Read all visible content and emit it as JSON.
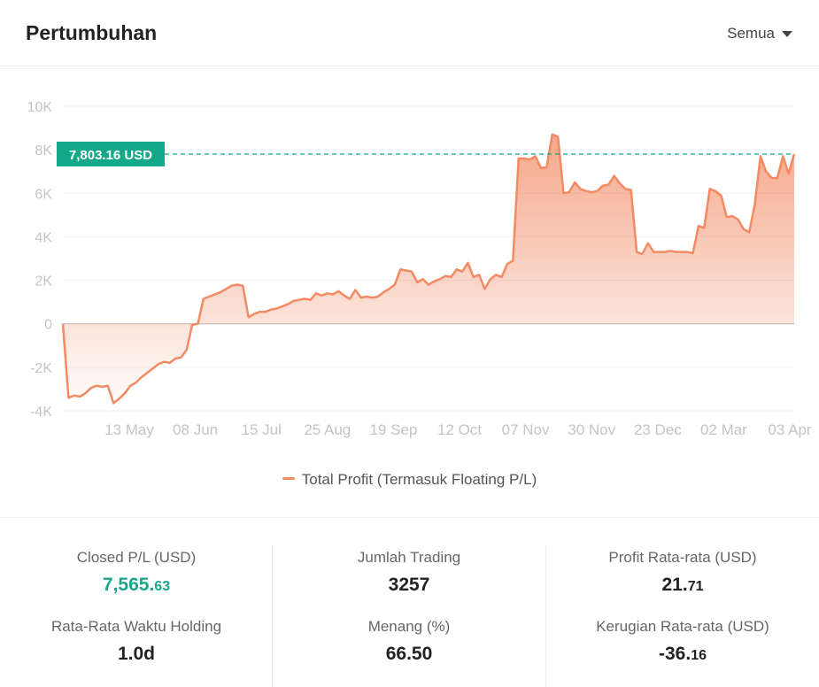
{
  "header": {
    "title": "Pertumbuhan",
    "filter_label": "Semua"
  },
  "chart_data": {
    "type": "area",
    "series": [
      {
        "name": "Total Profit (Termasuk Floating P/L)",
        "color": "#f28a63",
        "values": [
          0,
          -3400,
          -3300,
          -3350,
          -3200,
          -2950,
          -2850,
          -2900,
          -2850,
          -3650,
          -3450,
          -3200,
          -2850,
          -2700,
          -2450,
          -2250,
          -2050,
          -1850,
          -1750,
          -1800,
          -1600,
          -1550,
          -1200,
          -50,
          0,
          1150,
          1250,
          1350,
          1450,
          1600,
          1750,
          1800,
          1750,
          300,
          450,
          550,
          550,
          650,
          700,
          800,
          900,
          1050,
          1100,
          1150,
          1100,
          1400,
          1300,
          1400,
          1350,
          1500,
          1300,
          1150,
          1550,
          1200,
          1250,
          1200,
          1250,
          1450,
          1600,
          1800,
          2500,
          2450,
          2400,
          1900,
          2050,
          1800,
          1950,
          2050,
          2200,
          2150,
          2500,
          2400,
          2800,
          2150,
          2250,
          1600,
          2050,
          2250,
          2150,
          2750,
          2900,
          7600,
          7600,
          7550,
          7700,
          7150,
          7200,
          8700,
          8600,
          6000,
          6050,
          6500,
          6200,
          6100,
          6050,
          6100,
          6350,
          6400,
          6800,
          6450,
          6200,
          6150,
          3300,
          3200,
          3700,
          3300,
          3300,
          3300,
          3350,
          3300,
          3300,
          3300,
          3250,
          4500,
          4400,
          6200,
          6100,
          5900,
          4900,
          4950,
          4800,
          4350,
          4200,
          5500,
          7700,
          7000,
          6700,
          6700,
          7700,
          6900,
          7803.16
        ]
      }
    ],
    "x_tick_labels": [
      "13 May",
      "08 Jun",
      "15 Jul",
      "25 Aug",
      "19 Sep",
      "12 Oct",
      "07 Nov",
      "30 Nov",
      "23 Dec",
      "02 Mar",
      "03 Apr"
    ],
    "y_ticks": [
      -4000,
      -2000,
      0,
      2000,
      4000,
      6000,
      8000,
      10000
    ],
    "y_tick_labels": [
      "-4K",
      "-2K",
      "0",
      "2K",
      "4K",
      "6K",
      "8K",
      "10K"
    ],
    "ylim": [
      -4000,
      10000
    ],
    "grid": true,
    "current_value": 7803.16,
    "current_value_label": "7,803.16 USD",
    "marker_color": "#14a88a",
    "legend_position": "bottom"
  },
  "stats": {
    "closed_pl": {
      "label": "Closed P/L (USD)",
      "value_int": "7,565.",
      "value_dec": "63"
    },
    "avg_holding": {
      "label": "Rata-Rata Waktu Holding",
      "value": "1.0d"
    },
    "trades": {
      "label": "Jumlah Trading",
      "value": "3257"
    },
    "win_rate": {
      "label": "Menang (%)",
      "value": "66.50"
    },
    "avg_profit": {
      "label": "Profit Rata-rata (USD)",
      "value_int": "21.",
      "value_dec": "71"
    },
    "avg_loss": {
      "label": "Kerugian Rata-rata (USD)",
      "value_int": "-36.",
      "value_dec": "16"
    }
  }
}
